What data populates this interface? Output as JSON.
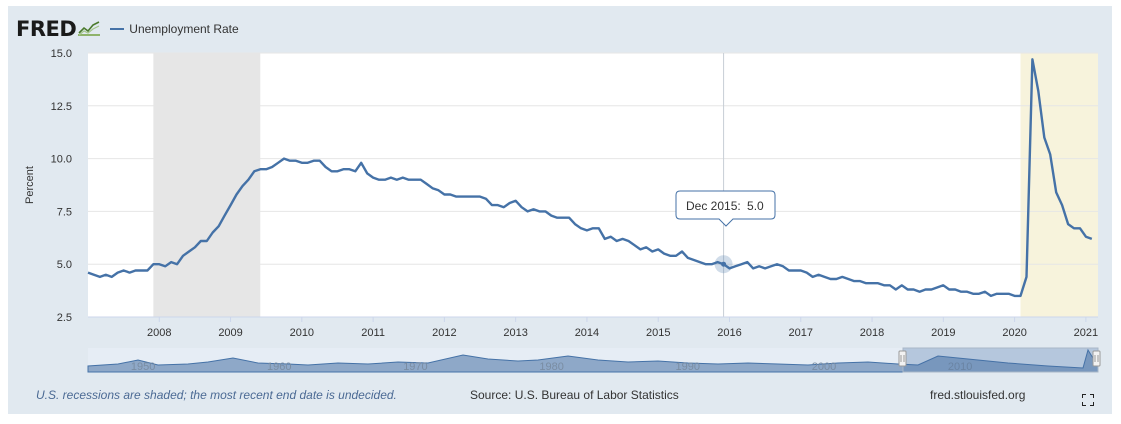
{
  "header": {
    "logo_text": "FRED",
    "legend_label": "Unemployment Rate",
    "series_color": "#4572a7"
  },
  "tooltip": {
    "date": "Dec 2015:",
    "value": "5.0"
  },
  "footer": {
    "recession_note": "U.S. recessions are shaded; the most recent end date is undecided.",
    "source": "Source: U.S. Bureau of Labor Statistics",
    "site": "fred.stlouisfed.org"
  },
  "icons": {
    "fullscreen": "fullscreen-icon",
    "logo": "fred-chart-icon"
  },
  "chart_data": {
    "type": "line",
    "ylabel": "Percent",
    "ylim": [
      2.5,
      15.0
    ],
    "yticks": [
      "2.5",
      "5.0",
      "7.5",
      "10.0",
      "12.5",
      "15.0"
    ],
    "xlim": [
      2007.0,
      2021.17
    ],
    "xticks": [
      "2008",
      "2009",
      "2010",
      "2011",
      "2012",
      "2013",
      "2014",
      "2015",
      "2016",
      "2017",
      "2018",
      "2019",
      "2020",
      "2021"
    ],
    "grid": true,
    "recessions": [
      {
        "start": 2007.917,
        "end": 2009.417,
        "color": "#e6e6e6"
      },
      {
        "start": 2020.083,
        "end": 2021.17,
        "color": "#f7f3dc"
      }
    ],
    "highlight": {
      "x": 2015.917,
      "y": 5.0
    },
    "navigator_ticks": [
      "1950",
      "1960",
      "1970",
      "1980",
      "1990",
      "2000",
      "2010"
    ],
    "series": [
      {
        "values": [
          [
            2007.0,
            4.6
          ],
          [
            2007.083,
            4.5
          ],
          [
            2007.167,
            4.4
          ],
          [
            2007.25,
            4.5
          ],
          [
            2007.333,
            4.4
          ],
          [
            2007.417,
            4.6
          ],
          [
            2007.5,
            4.7
          ],
          [
            2007.583,
            4.6
          ],
          [
            2007.667,
            4.7
          ],
          [
            2007.75,
            4.7
          ],
          [
            2007.833,
            4.7
          ],
          [
            2007.917,
            5.0
          ],
          [
            2008.0,
            5.0
          ],
          [
            2008.083,
            4.9
          ],
          [
            2008.167,
            5.1
          ],
          [
            2008.25,
            5.0
          ],
          [
            2008.333,
            5.4
          ],
          [
            2008.417,
            5.6
          ],
          [
            2008.5,
            5.8
          ],
          [
            2008.583,
            6.1
          ],
          [
            2008.667,
            6.1
          ],
          [
            2008.75,
            6.5
          ],
          [
            2008.833,
            6.8
          ],
          [
            2008.917,
            7.3
          ],
          [
            2009.0,
            7.8
          ],
          [
            2009.083,
            8.3
          ],
          [
            2009.167,
            8.7
          ],
          [
            2009.25,
            9.0
          ],
          [
            2009.333,
            9.4
          ],
          [
            2009.417,
            9.5
          ],
          [
            2009.5,
            9.5
          ],
          [
            2009.583,
            9.6
          ],
          [
            2009.667,
            9.8
          ],
          [
            2009.75,
            10.0
          ],
          [
            2009.833,
            9.9
          ],
          [
            2009.917,
            9.9
          ],
          [
            2010.0,
            9.8
          ],
          [
            2010.083,
            9.8
          ],
          [
            2010.167,
            9.9
          ],
          [
            2010.25,
            9.9
          ],
          [
            2010.333,
            9.6
          ],
          [
            2010.417,
            9.4
          ],
          [
            2010.5,
            9.4
          ],
          [
            2010.583,
            9.5
          ],
          [
            2010.667,
            9.5
          ],
          [
            2010.75,
            9.4
          ],
          [
            2010.833,
            9.8
          ],
          [
            2010.917,
            9.3
          ],
          [
            2011.0,
            9.1
          ],
          [
            2011.083,
            9.0
          ],
          [
            2011.167,
            9.0
          ],
          [
            2011.25,
            9.1
          ],
          [
            2011.333,
            9.0
          ],
          [
            2011.417,
            9.1
          ],
          [
            2011.5,
            9.0
          ],
          [
            2011.583,
            9.0
          ],
          [
            2011.667,
            9.0
          ],
          [
            2011.75,
            8.8
          ],
          [
            2011.833,
            8.6
          ],
          [
            2011.917,
            8.5
          ],
          [
            2012.0,
            8.3
          ],
          [
            2012.083,
            8.3
          ],
          [
            2012.167,
            8.2
          ],
          [
            2012.25,
            8.2
          ],
          [
            2012.333,
            8.2
          ],
          [
            2012.417,
            8.2
          ],
          [
            2012.5,
            8.2
          ],
          [
            2012.583,
            8.1
          ],
          [
            2012.667,
            7.8
          ],
          [
            2012.75,
            7.8
          ],
          [
            2012.833,
            7.7
          ],
          [
            2012.917,
            7.9
          ],
          [
            2013.0,
            8.0
          ],
          [
            2013.083,
            7.7
          ],
          [
            2013.167,
            7.5
          ],
          [
            2013.25,
            7.6
          ],
          [
            2013.333,
            7.5
          ],
          [
            2013.417,
            7.5
          ],
          [
            2013.5,
            7.3
          ],
          [
            2013.583,
            7.2
          ],
          [
            2013.667,
            7.2
          ],
          [
            2013.75,
            7.2
          ],
          [
            2013.833,
            6.9
          ],
          [
            2013.917,
            6.7
          ],
          [
            2014.0,
            6.6
          ],
          [
            2014.083,
            6.7
          ],
          [
            2014.167,
            6.7
          ],
          [
            2014.25,
            6.2
          ],
          [
            2014.333,
            6.3
          ],
          [
            2014.417,
            6.1
          ],
          [
            2014.5,
            6.2
          ],
          [
            2014.583,
            6.1
          ],
          [
            2014.667,
            5.9
          ],
          [
            2014.75,
            5.7
          ],
          [
            2014.833,
            5.8
          ],
          [
            2014.917,
            5.6
          ],
          [
            2015.0,
            5.7
          ],
          [
            2015.083,
            5.5
          ],
          [
            2015.167,
            5.4
          ],
          [
            2015.25,
            5.4
          ],
          [
            2015.333,
            5.6
          ],
          [
            2015.417,
            5.3
          ],
          [
            2015.5,
            5.2
          ],
          [
            2015.583,
            5.1
          ],
          [
            2015.667,
            5.0
          ],
          [
            2015.75,
            5.0
          ],
          [
            2015.833,
            5.1
          ],
          [
            2015.917,
            5.0
          ],
          [
            2016.0,
            4.8
          ],
          [
            2016.083,
            4.9
          ],
          [
            2016.167,
            5.0
          ],
          [
            2016.25,
            5.1
          ],
          [
            2016.333,
            4.8
          ],
          [
            2016.417,
            4.9
          ],
          [
            2016.5,
            4.8
          ],
          [
            2016.583,
            4.9
          ],
          [
            2016.667,
            5.0
          ],
          [
            2016.75,
            4.9
          ],
          [
            2016.833,
            4.7
          ],
          [
            2016.917,
            4.7
          ],
          [
            2017.0,
            4.7
          ],
          [
            2017.083,
            4.6
          ],
          [
            2017.167,
            4.4
          ],
          [
            2017.25,
            4.5
          ],
          [
            2017.333,
            4.4
          ],
          [
            2017.417,
            4.3
          ],
          [
            2017.5,
            4.3
          ],
          [
            2017.583,
            4.4
          ],
          [
            2017.667,
            4.3
          ],
          [
            2017.75,
            4.2
          ],
          [
            2017.833,
            4.2
          ],
          [
            2017.917,
            4.1
          ],
          [
            2018.0,
            4.1
          ],
          [
            2018.083,
            4.1
          ],
          [
            2018.167,
            4.0
          ],
          [
            2018.25,
            4.0
          ],
          [
            2018.333,
            3.8
          ],
          [
            2018.417,
            4.0
          ],
          [
            2018.5,
            3.8
          ],
          [
            2018.583,
            3.8
          ],
          [
            2018.667,
            3.7
          ],
          [
            2018.75,
            3.8
          ],
          [
            2018.833,
            3.8
          ],
          [
            2018.917,
            3.9
          ],
          [
            2019.0,
            4.0
          ],
          [
            2019.083,
            3.8
          ],
          [
            2019.167,
            3.8
          ],
          [
            2019.25,
            3.7
          ],
          [
            2019.333,
            3.7
          ],
          [
            2019.417,
            3.6
          ],
          [
            2019.5,
            3.6
          ],
          [
            2019.583,
            3.7
          ],
          [
            2019.667,
            3.5
          ],
          [
            2019.75,
            3.6
          ],
          [
            2019.833,
            3.6
          ],
          [
            2019.917,
            3.6
          ],
          [
            2020.0,
            3.5
          ],
          [
            2020.083,
            3.5
          ],
          [
            2020.167,
            4.4
          ],
          [
            2020.25,
            14.7
          ],
          [
            2020.333,
            13.2
          ],
          [
            2020.417,
            11.0
          ],
          [
            2020.5,
            10.2
          ],
          [
            2020.583,
            8.4
          ],
          [
            2020.667,
            7.8
          ],
          [
            2020.75,
            6.9
          ],
          [
            2020.833,
            6.7
          ],
          [
            2020.917,
            6.7
          ],
          [
            2021.0,
            6.3
          ],
          [
            2021.083,
            6.2
          ]
        ]
      }
    ]
  }
}
